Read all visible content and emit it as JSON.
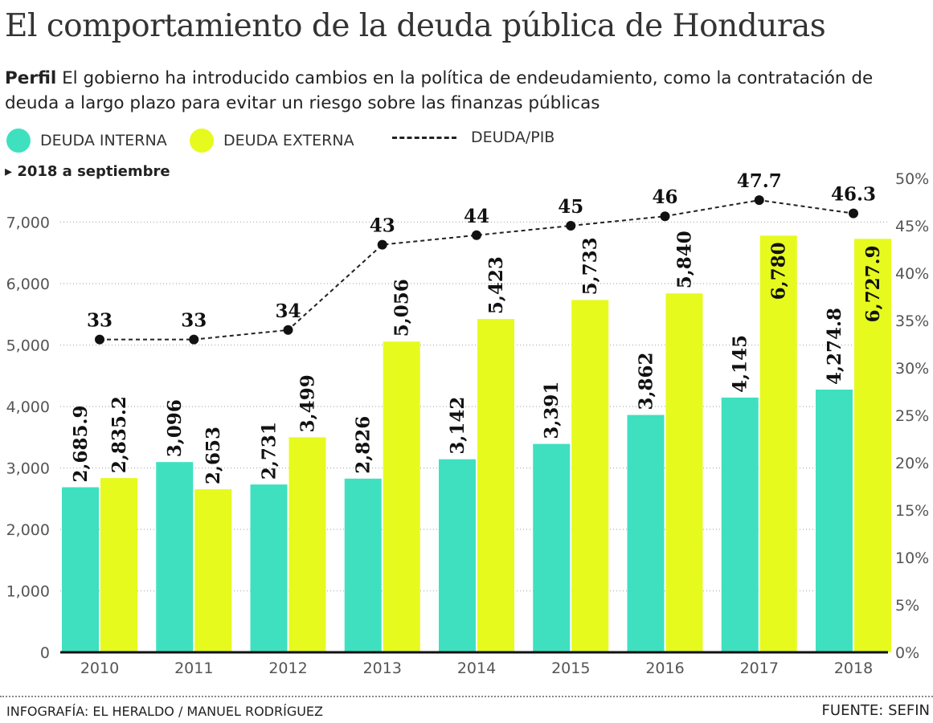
{
  "title": "El comportamiento de la deuda pública de Honduras",
  "subtitle_lead": "Perfil",
  "subtitle": "El gobierno ha introducido cambios en la política de endeudamiento, como la contratación de deuda a largo plazo para evitar un riesgo sobre las finanzas públicas",
  "note": "2018 a septiembre",
  "credit": "INFOGRAFÍA: EL HERALDO / MANUEL RODRÍGUEZ",
  "source": "FUENTE: SEFIN",
  "chart_data": {
    "type": "bar",
    "categories": [
      "2010",
      "2011",
      "2012",
      "2013",
      "2014",
      "2015",
      "2016",
      "2017",
      "2018"
    ],
    "series": [
      {
        "name": "DEUDA INTERNA",
        "color": "#3fe0c0",
        "values": [
          2685.9,
          3096,
          2731,
          2826,
          3142,
          3391,
          3862,
          4145,
          4274.8
        ],
        "labels": [
          "2,685.9",
          "3,096",
          "2,731",
          "2,826",
          "3,142",
          "3,391",
          "3,862",
          "4,145",
          "4,274.8"
        ]
      },
      {
        "name": "DEUDA EXTERNA",
        "color": "#e6fa1e",
        "values": [
          2835.2,
          2653,
          3499,
          5056,
          5423,
          5733,
          5840,
          6780,
          6727.9
        ],
        "labels": [
          "2,835.2",
          "2,653",
          "3,499",
          "5,056",
          "5,423",
          "5,733",
          "5,840",
          "6,780",
          "6,727.9"
        ]
      }
    ],
    "line_series": {
      "name": "DEUDA/PIB",
      "axis": "right",
      "style": "dashed",
      "values": [
        33,
        33,
        34,
        43,
        44,
        45,
        46,
        47.7,
        46.3
      ],
      "labels": [
        "33",
        "33",
        "34",
        "43",
        "44",
        "45",
        "46",
        "47.7",
        "46.3"
      ]
    },
    "y_left": {
      "range": [
        0,
        7000
      ],
      "ticks": [
        "0",
        "1,000",
        "2,000",
        "3,000",
        "4,000",
        "5,000",
        "6,000",
        "7,000"
      ]
    },
    "y_right": {
      "range": [
        0,
        50
      ],
      "ticks": [
        "0%",
        "5%",
        "10%",
        "15%",
        "20%",
        "25%",
        "30%",
        "35%",
        "40%",
        "45%",
        "50%"
      ]
    },
    "grid": "horizontal dotted",
    "legend": "top-left"
  }
}
